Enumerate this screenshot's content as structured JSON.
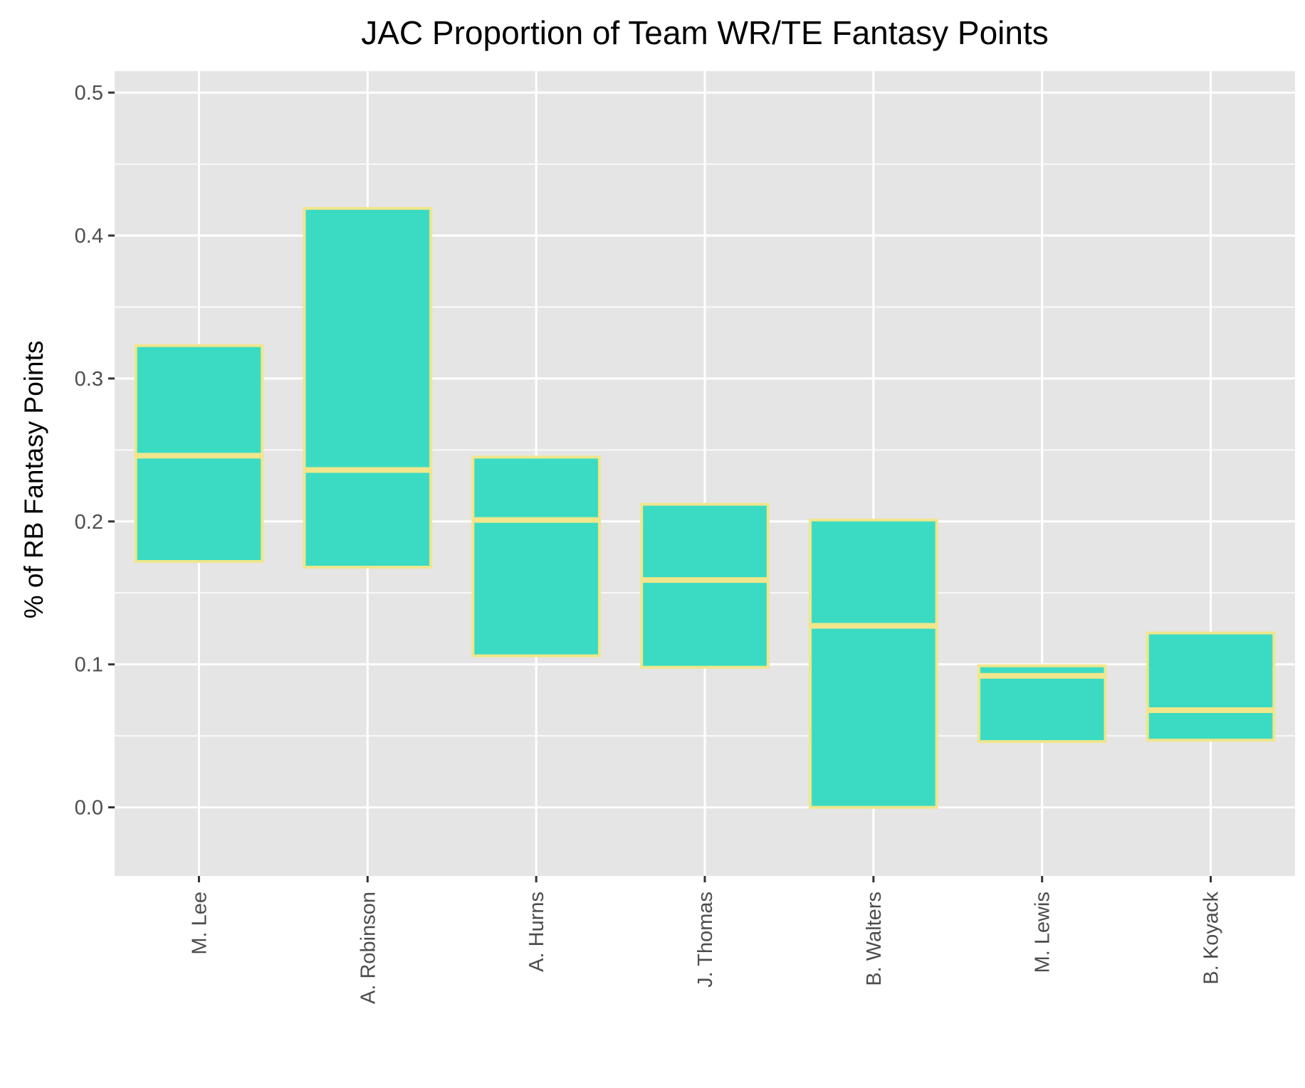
{
  "chart_data": {
    "type": "box",
    "title": "JAC Proportion of Team WR/TE Fantasy Points",
    "xlabel": "",
    "ylabel": "% of RB Fantasy Points",
    "ylim": [
      -0.048,
      0.515
    ],
    "yticks": [
      "0.0",
      "0.1",
      "0.2",
      "0.3",
      "0.4",
      "0.5"
    ],
    "ytick_values": [
      0.0,
      0.1,
      0.2,
      0.3,
      0.4,
      0.5
    ],
    "grid": true,
    "legend": "none",
    "categories": [
      "M. Lee",
      "A. Robinson",
      "A. Hurns",
      "J. Thomas",
      "B. Walters",
      "M. Lewis",
      "B. Koyack"
    ],
    "boxes": [
      {
        "name": "M. Lee",
        "lower": 0.172,
        "median": 0.246,
        "upper": 0.323
      },
      {
        "name": "A. Robinson",
        "lower": 0.168,
        "median": 0.236,
        "upper": 0.419
      },
      {
        "name": "A. Hurns",
        "lower": 0.106,
        "median": 0.201,
        "upper": 0.245
      },
      {
        "name": "J. Thomas",
        "lower": 0.098,
        "median": 0.159,
        "upper": 0.212
      },
      {
        "name": "B. Walters",
        "lower": 0.0,
        "median": 0.127,
        "upper": 0.201
      },
      {
        "name": "M. Lewis",
        "lower": 0.046,
        "median": 0.092,
        "upper": 0.099
      },
      {
        "name": "B. Koyack",
        "lower": 0.047,
        "median": 0.068,
        "upper": 0.122
      }
    ],
    "colors": {
      "box_fill": "#3bdbc3",
      "box_outline": "#f0e68c",
      "panel_background": "#e5e5e5",
      "grid": "#ffffff",
      "tick_text": "#4d4d4d",
      "title_text": "#000000"
    }
  }
}
